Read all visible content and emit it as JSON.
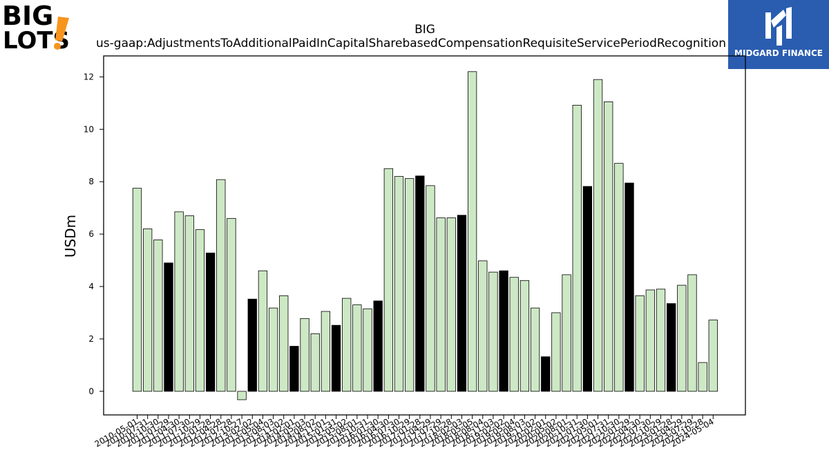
{
  "logos": {
    "left": {
      "line1": "BIG",
      "line2": "LOTS",
      "mark": "!",
      "colors": {
        "text": "#000000",
        "mark": "#f7941d"
      }
    },
    "right": {
      "name": "MIDGARD FINANCE",
      "colors": {
        "bg": "#2a5db0",
        "text": "#ffffff"
      }
    }
  },
  "chart_data": {
    "type": "bar",
    "title": "BIG",
    "subtitle": "us-gaap:AdjustmentsToAdditionalPaidInCapitalSharebasedCompensationRequisiteServicePeriodRecognition",
    "xlabel": "",
    "ylabel": "USDm",
    "ylim": [
      -0.9,
      12.8
    ],
    "yticks": [
      0,
      2,
      4,
      6,
      8,
      10,
      12
    ],
    "grid": false,
    "colors": {
      "normal": "#cde8c5",
      "highlight": "#000000",
      "edge": "#000000"
    },
    "categories": [
      "2010-05-01",
      "2010-07-31",
      "2010-10-30",
      "2011-01-29",
      "2011-04-30",
      "2011-07-30",
      "2011-10-29",
      "2012-01-28",
      "2012-04-28",
      "2012-07-28",
      "2012-10-27",
      "2013-02-02",
      "2013-05-04",
      "2013-08-03",
      "2013-11-02",
      "2014-02-01",
      "2014-05-03",
      "2014-08-02",
      "2014-11-01",
      "2015-01-31",
      "2015-05-02",
      "2015-08-01",
      "2015-10-31",
      "2016-01-30",
      "2016-04-30",
      "2016-07-30",
      "2016-10-29",
      "2017-01-28",
      "2017-04-29",
      "2017-07-29",
      "2017-10-28",
      "2018-02-03",
      "2018-05-05",
      "2018-08-04",
      "2018-11-03",
      "2019-02-02",
      "2019-05-04",
      "2019-08-03",
      "2019-11-02",
      "2020-02-01",
      "2020-05-02",
      "2020-08-01",
      "2020-10-31",
      "2021-01-30",
      "2021-05-01",
      "2021-07-31",
      "2021-10-30",
      "2022-01-29",
      "2022-04-30",
      "2022-07-30",
      "2022-10-29",
      "2023-01-28",
      "2023-04-29",
      "2023-07-29",
      "2023-10-28",
      "2024-05-04"
    ],
    "values": [
      7.75,
      6.2,
      5.78,
      4.9,
      6.85,
      6.7,
      6.17,
      5.28,
      8.08,
      6.6,
      -0.32,
      3.52,
      4.6,
      3.18,
      3.65,
      1.72,
      2.78,
      2.2,
      3.05,
      2.52,
      3.55,
      3.3,
      3.15,
      3.45,
      8.5,
      8.2,
      8.12,
      8.22,
      7.85,
      6.62,
      6.62,
      6.72,
      12.2,
      4.98,
      4.55,
      4.6,
      4.35,
      4.23,
      3.18,
      1.32,
      3.0,
      4.45,
      10.92,
      7.82,
      11.9,
      11.05,
      8.7,
      7.95,
      3.65,
      3.87,
      3.9,
      3.35,
      4.05,
      4.45,
      1.1,
      2.72
    ],
    "highlight": [
      false,
      false,
      false,
      true,
      false,
      false,
      false,
      true,
      false,
      false,
      false,
      true,
      false,
      false,
      false,
      true,
      false,
      false,
      false,
      true,
      false,
      false,
      false,
      true,
      false,
      false,
      false,
      true,
      false,
      false,
      false,
      true,
      false,
      false,
      false,
      true,
      false,
      false,
      false,
      true,
      false,
      false,
      false,
      true,
      false,
      false,
      false,
      true,
      false,
      false,
      false,
      true,
      false,
      false,
      false,
      false
    ]
  }
}
